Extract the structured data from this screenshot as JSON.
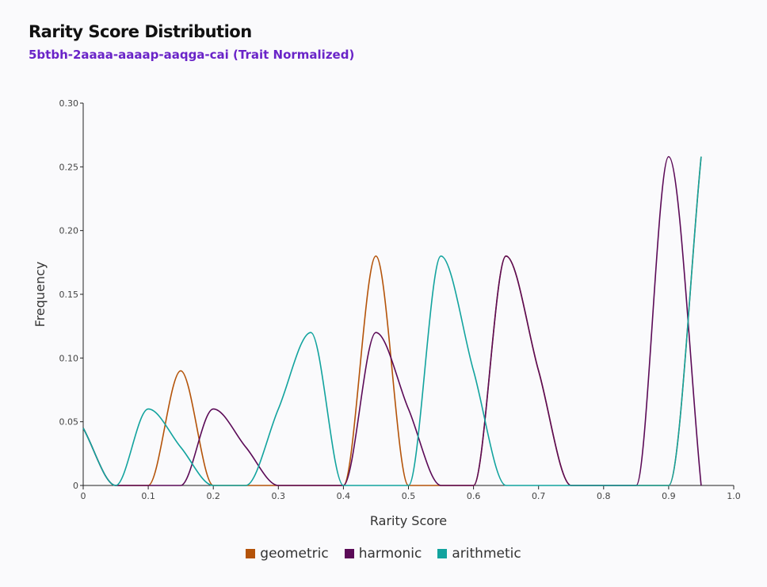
{
  "title": "Rarity Score Distribution",
  "subtitle": "5btbh-2aaaa-aaaap-aaqga-cai (Trait Normalized)",
  "chart_data": {
    "type": "line",
    "xlabel": "Rarity Score",
    "ylabel": "Frequency",
    "xlim": [
      0,
      1.0
    ],
    "ylim": [
      0,
      0.3
    ],
    "x_ticks": [
      "0",
      "0.1",
      "0.2",
      "0.3",
      "0.4",
      "0.5",
      "0.6",
      "0.7",
      "0.8",
      "0.9",
      "1.0"
    ],
    "y_ticks": [
      "0",
      "0.05",
      "0.10",
      "0.15",
      "0.20",
      "0.25",
      "0.30"
    ],
    "grid": false,
    "legend_position": "bottom",
    "series": [
      {
        "name": "geometric",
        "color": "#b45309",
        "points": [
          [
            0,
            0.045
          ],
          [
            0.05,
            0
          ],
          [
            0.1,
            0
          ],
          [
            0.15,
            0.09
          ],
          [
            0.2,
            0
          ],
          [
            0.25,
            0
          ],
          [
            0.3,
            0
          ],
          [
            0.35,
            0
          ],
          [
            0.4,
            0
          ],
          [
            0.45,
            0.18
          ],
          [
            0.5,
            0
          ],
          [
            0.55,
            0
          ],
          [
            0.6,
            0
          ],
          [
            0.65,
            0.18
          ],
          [
            0.7,
            0.09
          ],
          [
            0.75,
            0
          ],
          [
            0.8,
            0
          ],
          [
            0.85,
            0
          ],
          [
            0.9,
            0
          ],
          [
            0.95,
            0.258
          ]
        ]
      },
      {
        "name": "harmonic",
        "color": "#5b0a57",
        "points": [
          [
            0,
            0.045
          ],
          [
            0.05,
            0
          ],
          [
            0.1,
            0
          ],
          [
            0.15,
            0
          ],
          [
            0.2,
            0.06
          ],
          [
            0.25,
            0.03
          ],
          [
            0.3,
            0
          ],
          [
            0.35,
            0
          ],
          [
            0.4,
            0
          ],
          [
            0.45,
            0.12
          ],
          [
            0.5,
            0.06
          ],
          [
            0.55,
            0
          ],
          [
            0.6,
            0
          ],
          [
            0.65,
            0.18
          ],
          [
            0.7,
            0.09
          ],
          [
            0.75,
            0
          ],
          [
            0.8,
            0
          ],
          [
            0.85,
            0
          ],
          [
            0.9,
            0.258
          ],
          [
            0.95,
            0
          ]
        ]
      },
      {
        "name": "arithmetic",
        "color": "#12a39e",
        "points": [
          [
            0,
            0.045
          ],
          [
            0.05,
            0
          ],
          [
            0.1,
            0.06
          ],
          [
            0.15,
            0.03
          ],
          [
            0.2,
            0
          ],
          [
            0.25,
            0
          ],
          [
            0.3,
            0.06
          ],
          [
            0.35,
            0.12
          ],
          [
            0.4,
            0
          ],
          [
            0.45,
            0
          ],
          [
            0.5,
            0
          ],
          [
            0.55,
            0.18
          ],
          [
            0.6,
            0.09
          ],
          [
            0.65,
            0
          ],
          [
            0.7,
            0
          ],
          [
            0.75,
            0
          ],
          [
            0.8,
            0
          ],
          [
            0.85,
            0
          ],
          [
            0.9,
            0
          ],
          [
            0.95,
            0.258
          ]
        ]
      }
    ]
  }
}
